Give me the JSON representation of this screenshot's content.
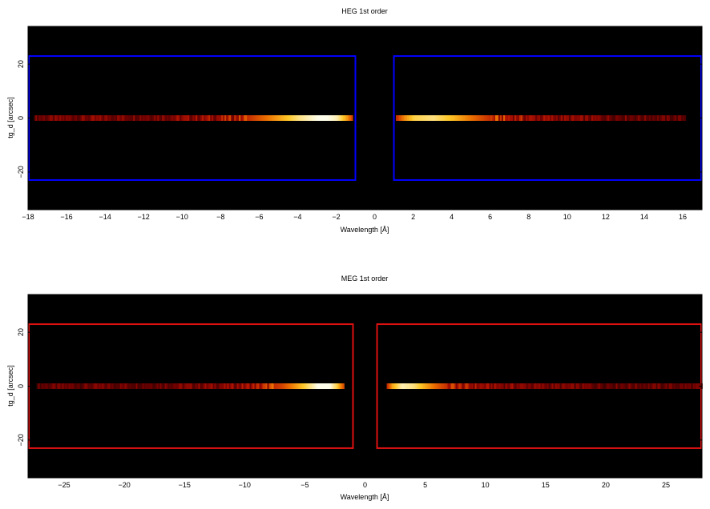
{
  "chart_data": [
    {
      "type": "heatmap",
      "title": "HEG 1st order",
      "xlabel": "Wavelength [Å]",
      "ylabel": "tg_d [arcsec]",
      "xlim": [
        -18,
        17
      ],
      "ylim": [
        -34,
        34
      ],
      "xticks": [
        -18,
        -16,
        -14,
        -12,
        -10,
        -8,
        -6,
        -4,
        -2,
        0,
        2,
        4,
        6,
        8,
        10,
        12,
        14,
        16
      ],
      "xtick_labels": [
        "−18",
        "−16",
        "−14",
        "−12",
        "−10",
        "−8",
        "−6",
        "−4",
        "−2",
        "0",
        "2",
        "4",
        "6",
        "8",
        "10",
        "12",
        "14",
        "16"
      ],
      "yticks": [
        -20,
        0,
        20
      ],
      "ytick_labels": [
        "−20",
        "0",
        "20"
      ],
      "grid": false,
      "background": "#000000",
      "region_color": "#0000ff",
      "regions": [
        {
          "side": "minus",
          "x": [
            -18,
            -1
          ],
          "y": [
            -23,
            23
          ]
        },
        {
          "side": "plus",
          "x": [
            1,
            17
          ],
          "y": [
            -23,
            23
          ]
        }
      ],
      "trace": {
        "y": 0,
        "minus_extent": [
          -17.7,
          -1.2
        ],
        "plus_extent": [
          1.1,
          16.1
        ],
        "intensity_profile": {
          "x": [
            -17.7,
            -15,
            -12,
            -10,
            -8,
            -7,
            -6,
            -5,
            -4,
            -3,
            -2.5,
            -2,
            -1.5,
            -1.2,
            1.1,
            1.5,
            2,
            3,
            4,
            5,
            6,
            7,
            8,
            10,
            12,
            14,
            16.1
          ],
          "values": [
            0.25,
            0.28,
            0.3,
            0.32,
            0.38,
            0.45,
            0.6,
            0.75,
            0.9,
            1.0,
            1.0,
            0.95,
            0.75,
            0.55,
            0.5,
            0.7,
            0.85,
            0.9,
            0.8,
            0.65,
            0.5,
            0.42,
            0.36,
            0.3,
            0.27,
            0.24,
            0.22
          ]
        }
      }
    },
    {
      "type": "heatmap",
      "title": "MEG 1st order",
      "xlabel": "Wavelength [Å]",
      "ylabel": "tg_d [arcsec]",
      "xlim": [
        -28,
        28
      ],
      "ylim": [
        -34,
        34
      ],
      "xticks": [
        -25,
        -20,
        -15,
        -10,
        -5,
        0,
        5,
        10,
        15,
        20,
        25
      ],
      "xtick_labels": [
        "−25",
        "−20",
        "−15",
        "−10",
        "−5",
        "0",
        "5",
        "10",
        "15",
        "20",
        "25"
      ],
      "yticks": [
        -20,
        0,
        20
      ],
      "ytick_labels": [
        "−20",
        "0",
        "20"
      ],
      "grid": false,
      "background": "#000000",
      "region_color": "#dd1111",
      "regions": [
        {
          "side": "minus",
          "x": [
            -28,
            -1
          ],
          "y": [
            -23,
            23
          ]
        },
        {
          "side": "plus",
          "x": [
            1,
            28
          ],
          "y": [
            -23,
            23
          ]
        }
      ],
      "trace": {
        "y": 0,
        "minus_extent": [
          -27.3,
          -1.8
        ],
        "plus_extent": [
          1.8,
          28
        ],
        "intensity_profile": {
          "x": [
            -27.3,
            -22,
            -18,
            -14,
            -11,
            -9,
            -7,
            -6,
            -5,
            -4,
            -3,
            -2.4,
            -1.8,
            1.8,
            2.2,
            3,
            4,
            5,
            6,
            7,
            8,
            10,
            14,
            18,
            22,
            28
          ],
          "values": [
            0.22,
            0.24,
            0.25,
            0.28,
            0.32,
            0.4,
            0.55,
            0.7,
            0.85,
            1.0,
            1.0,
            0.85,
            0.55,
            0.5,
            0.75,
            0.95,
            0.9,
            0.75,
            0.6,
            0.48,
            0.4,
            0.33,
            0.28,
            0.25,
            0.24,
            0.22
          ]
        }
      }
    }
  ]
}
